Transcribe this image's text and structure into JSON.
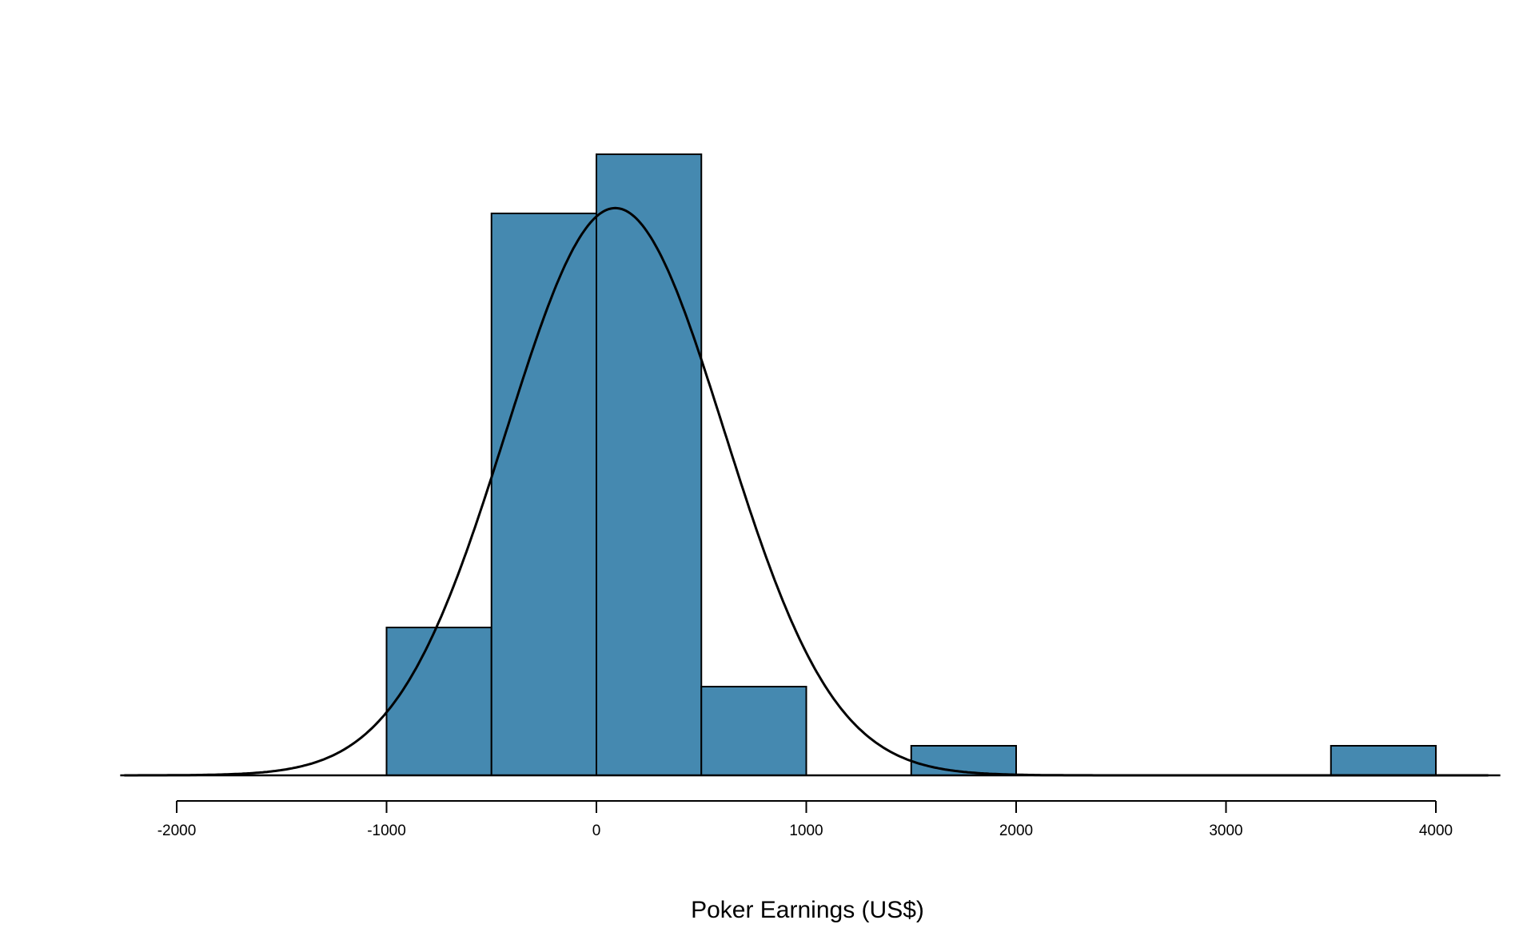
{
  "chart_data": {
    "type": "bar",
    "title": "",
    "xlabel": "Poker Earnings (US$)",
    "ylabel": "",
    "xlim": [
      -2250,
      4250
    ],
    "xticks": [
      "-2000",
      "-1000",
      "0",
      "1000",
      "2000",
      "3000",
      "4000"
    ],
    "bins": [
      {
        "x0": -1000,
        "x1": -500,
        "count": 5
      },
      {
        "x0": -500,
        "x1": 0,
        "count": 19
      },
      {
        "x0": 0,
        "x1": 500,
        "count": 21
      },
      {
        "x0": 500,
        "x1": 1000,
        "count": 3
      },
      {
        "x0": 1000,
        "x1": 1500,
        "count": 0
      },
      {
        "x0": 1500,
        "x1": 2000,
        "count": 1
      },
      {
        "x0": 2000,
        "x1": 2500,
        "count": 0
      },
      {
        "x0": 2500,
        "x1": 3000,
        "count": 0
      },
      {
        "x0": 3000,
        "x1": 3500,
        "count": 0
      },
      {
        "x0": 3500,
        "x1": 4000,
        "count": 1
      }
    ],
    "normal_curve": {
      "mean": 90,
      "sd": 520
    },
    "grid": false,
    "legend": "none",
    "colors": {
      "bar_fill": "#4589b0",
      "bar_stroke": "#000000",
      "curve": "#000000"
    }
  }
}
